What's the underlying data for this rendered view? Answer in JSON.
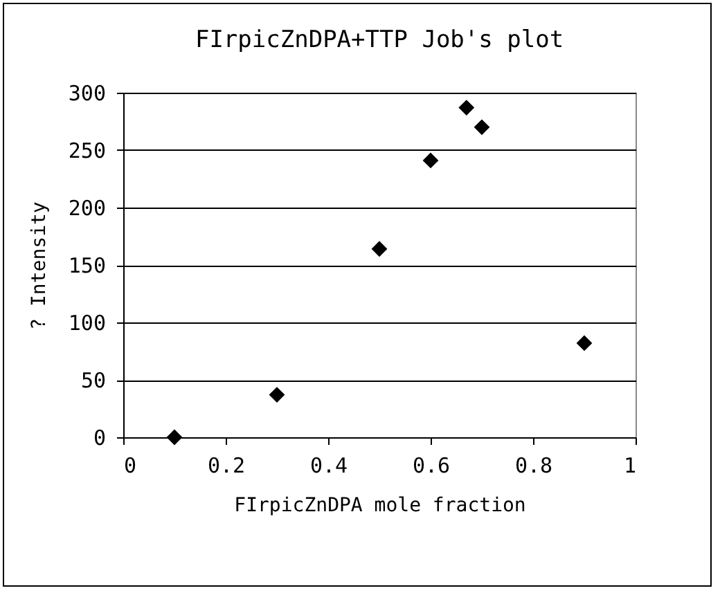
{
  "chart_data": {
    "type": "scatter",
    "title": "FIrpicZnDPA+TTP Job's plot",
    "xlabel": "FIrpicZnDPA mole fraction",
    "ylabel": "? Intensity",
    "x": [
      0.1,
      0.3,
      0.5,
      0.6,
      0.67,
      0.7,
      0.9
    ],
    "series": [
      {
        "color": "#000000",
        "values": [
          0,
          37,
          164,
          241,
          287,
          270,
          82
        ]
      }
    ],
    "xlim": [
      0,
      1
    ],
    "xticks": [
      0,
      0.2,
      0.4,
      0.6,
      0.8,
      1
    ],
    "ylim": [
      0,
      300
    ],
    "yticks": [
      0,
      50,
      100,
      150,
      200,
      250,
      300
    ],
    "grid": "y",
    "legend": false,
    "marker": "diamond"
  }
}
